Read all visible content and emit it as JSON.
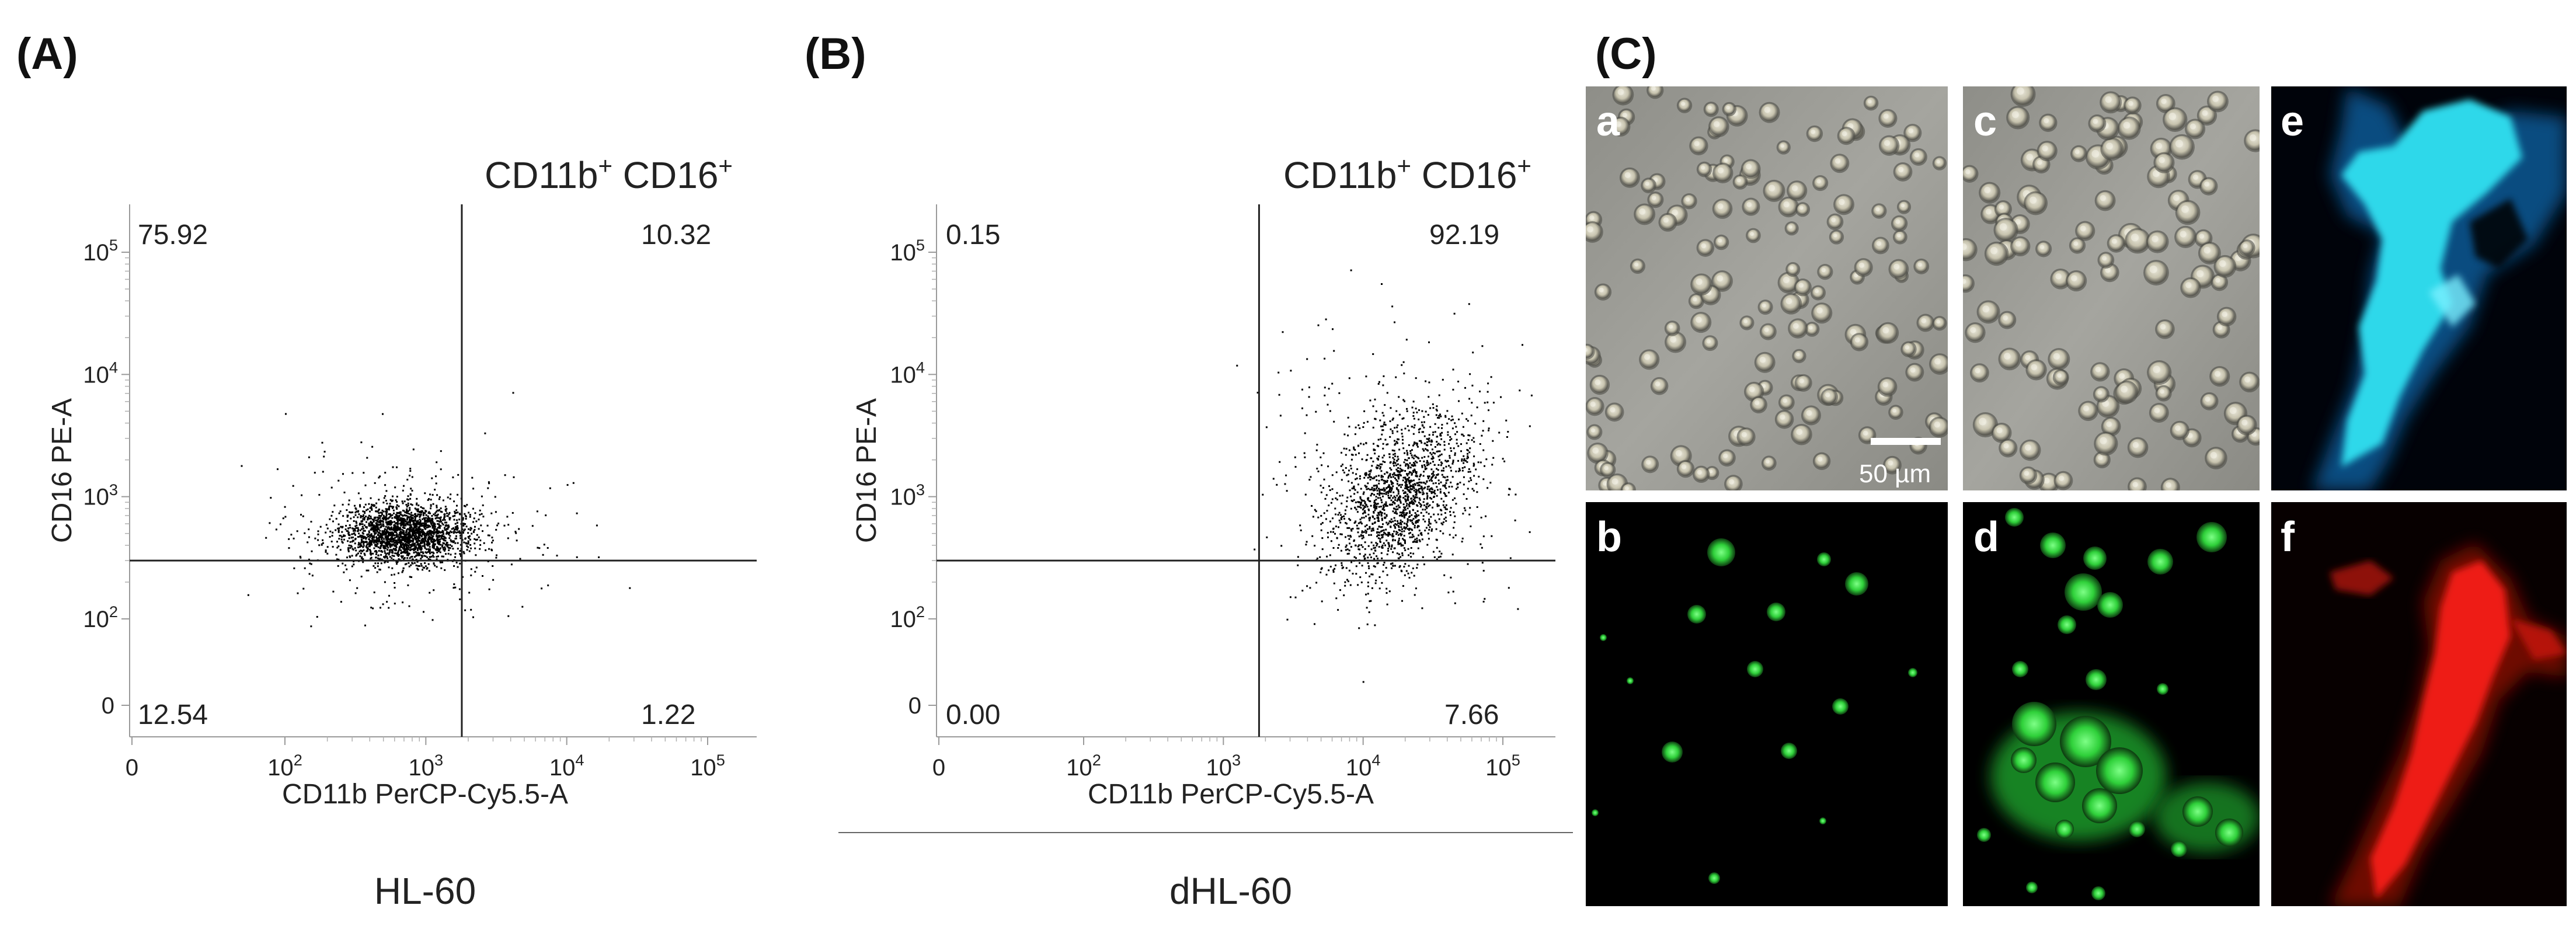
{
  "panels": {
    "A": {
      "letter": "(A)",
      "quadrant_title_main": "CD11b",
      "quadrant_title_sup1": "+",
      "quadrant_title_mid": " CD16",
      "quadrant_title_sup2": "+",
      "sample_label": "HL-60"
    },
    "B": {
      "letter": "(B)",
      "quadrant_title_main": "CD11b",
      "quadrant_title_sup1": "+",
      "quadrant_title_mid": " CD16",
      "quadrant_title_sup2": "+",
      "sample_label": "dHL-60"
    },
    "C": {
      "letter": "(C)",
      "tiles": [
        {
          "letter": "a",
          "kind": "brightfield"
        },
        {
          "letter": "c",
          "kind": "brightfield"
        },
        {
          "letter": "e",
          "kind": "cyan-fluorescence"
        },
        {
          "letter": "b",
          "kind": "green-fluorescence"
        },
        {
          "letter": "d",
          "kind": "green-fluorescence"
        },
        {
          "letter": "f",
          "kind": "red-fluorescence"
        }
      ],
      "scale_bar_label": "50 µm"
    }
  },
  "colors": {
    "cyan": "#2fd8ea",
    "green": "#33d23f",
    "red": "#ee1a14",
    "points": "#000000",
    "brightfield": "#9a9a94"
  },
  "chart_data": [
    {
      "type": "scatter",
      "panel": "A",
      "xlabel": "CD11b PerCP-Cy5.5-A",
      "ylabel": "CD16 PE-A",
      "x_scale": "biexponential",
      "y_scale": "biexponential",
      "x_ticks": [
        {
          "value": 0,
          "label": "0"
        },
        {
          "value": 100,
          "label": "10^2"
        },
        {
          "value": 1000,
          "label": "10^3"
        },
        {
          "value": 10000,
          "label": "10^4"
        },
        {
          "value": 100000,
          "label": "10^5"
        }
      ],
      "y_ticks": [
        {
          "value": 0,
          "label": "0"
        },
        {
          "value": 100,
          "label": "10^2"
        },
        {
          "value": 1000,
          "label": "10^3"
        },
        {
          "value": 10000,
          "label": "10^4"
        },
        {
          "value": 100000,
          "label": "10^5"
        }
      ],
      "gate_x": 1800,
      "gate_y": 300,
      "quadrant_values": {
        "upper_left": "75.92",
        "upper_right": "10.32",
        "lower_left": "12.54",
        "lower_right": "1.22"
      },
      "clusters": [
        {
          "center_x": 700,
          "center_y": 500,
          "count": 3000
        }
      ]
    },
    {
      "type": "scatter",
      "panel": "B",
      "xlabel": "CD11b PerCP-Cy5.5-A",
      "ylabel": "CD16 PE-A",
      "x_scale": "biexponential",
      "y_scale": "biexponential",
      "x_ticks": [
        {
          "value": 0,
          "label": "0"
        },
        {
          "value": 100,
          "label": "10^2"
        },
        {
          "value": 1000,
          "label": "10^3"
        },
        {
          "value": 10000,
          "label": "10^4"
        },
        {
          "value": 100000,
          "label": "10^5"
        }
      ],
      "y_ticks": [
        {
          "value": 0,
          "label": "0"
        },
        {
          "value": 100,
          "label": "10^2"
        },
        {
          "value": 1000,
          "label": "10^3"
        },
        {
          "value": 10000,
          "label": "10^4"
        },
        {
          "value": 100000,
          "label": "10^5"
        }
      ],
      "gate_x": 1800,
      "gate_y": 300,
      "quadrant_values": {
        "upper_left": "0.15",
        "upper_right": "92.19",
        "lower_left": "0.00",
        "lower_right": "7.66"
      },
      "clusters": [
        {
          "center_x": 18000,
          "center_y": 1000,
          "count": 9000
        }
      ]
    }
  ]
}
